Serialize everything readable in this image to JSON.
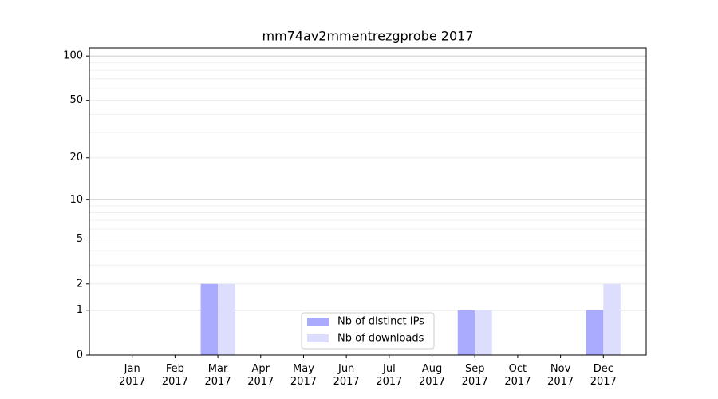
{
  "chart_data": {
    "type": "bar",
    "title": "mm74av2mmentrezgprobe 2017",
    "categories": [
      "Jan\n2017",
      "Feb\n2017",
      "Mar\n2017",
      "Apr\n2017",
      "May\n2017",
      "Jun\n2017",
      "Jul\n2017",
      "Aug\n2017",
      "Sep\n2017",
      "Oct\n2017",
      "Nov\n2017",
      "Dec\n2017"
    ],
    "series": [
      {
        "name": "Nb of distinct IPs",
        "color": "#aaaaff",
        "values": [
          0,
          0,
          2,
          0,
          0,
          0,
          0,
          0,
          1,
          0,
          0,
          1
        ]
      },
      {
        "name": "Nb of downloads",
        "color": "#ddddfd",
        "values": [
          0,
          0,
          2,
          0,
          0,
          0,
          0,
          0,
          1,
          0,
          0,
          2
        ]
      }
    ],
    "yscale": "log1p",
    "ylim": [
      0,
      113.5
    ],
    "yticks": [
      0,
      1,
      2,
      5,
      10,
      20,
      50,
      100
    ],
    "grid": true,
    "legend": "lower center"
  }
}
